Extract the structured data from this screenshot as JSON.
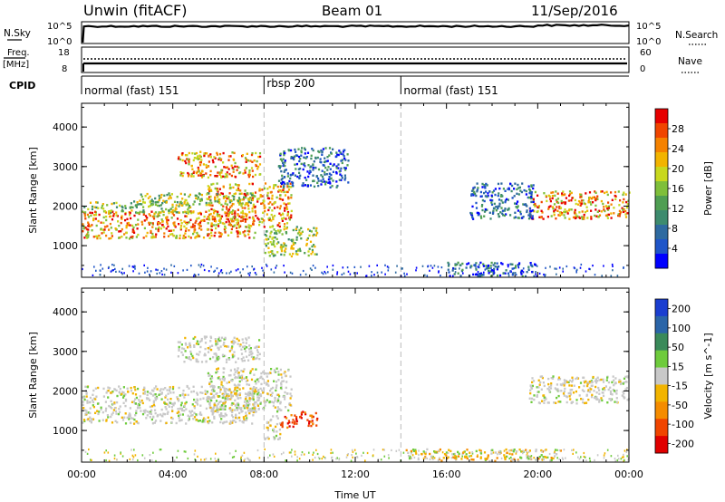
{
  "header": {
    "title": "Unwin (fitACF)",
    "beam": "Beam 01",
    "date": "11/Sep/2016"
  },
  "strips": {
    "nsky_label": "N.Sky",
    "nsky_ticks": [
      "10^5",
      "10^0"
    ],
    "nsearch_label": "N.Search",
    "nsearch_ticks": [
      "10^5",
      "10^0"
    ],
    "freq_label": "Freq.",
    "freq_unit": "[MHz]",
    "freq_ticks": [
      "18",
      "8"
    ],
    "nave_label": "Nave",
    "nave_ticks": [
      "60",
      "0"
    ],
    "cpid_label": "CPID",
    "cpid_segments": [
      {
        "label": "normal (fast) 151",
        "start_hour": 0,
        "end_hour": 8
      },
      {
        "label": "rbsp 200",
        "start_hour": 8,
        "end_hour": 14
      },
      {
        "label": "normal (fast) 151",
        "start_hour": 14,
        "end_hour": 24
      }
    ]
  },
  "chart_data": [
    {
      "type": "heatmap",
      "panel": "power",
      "ylabel": "Slant Range [km]",
      "xlabel": "Time UT",
      "ylim": [
        200,
        4600
      ],
      "xlim": [
        0,
        24
      ],
      "yticks": [
        "1000",
        "2000",
        "3000",
        "4000"
      ],
      "xticks": [
        "00:00",
        "04:00",
        "08:00",
        "12:00",
        "16:00",
        "20:00",
        "00:00"
      ],
      "colorbar": {
        "label": "Power [dB]",
        "ticks": [
          "4",
          "8",
          "12",
          "16",
          "20",
          "24",
          "28"
        ],
        "colors": [
          "#0000ff",
          "#1f55c8",
          "#2e6aa0",
          "#3d8b6e",
          "#4f9e52",
          "#7fbf3a",
          "#c8d81e",
          "#f2b400",
          "#f58200",
          "#f04500",
          "#e60000"
        ]
      },
      "echo_regions": [
        {
          "t_start": 0.0,
          "t_end": 7.6,
          "r_low": 1200,
          "r_high": 1900,
          "level": "high"
        },
        {
          "t_start": 5.5,
          "t_end": 9.2,
          "r_low": 1500,
          "r_high": 2600,
          "level": "high"
        },
        {
          "t_start": 0.0,
          "t_end": 4.8,
          "r_low": 1850,
          "r_high": 2150,
          "level": "medium"
        },
        {
          "t_start": 2.5,
          "t_end": 7.6,
          "r_low": 2050,
          "r_high": 2350,
          "level": "medium"
        },
        {
          "t_start": 4.2,
          "t_end": 7.8,
          "r_low": 2750,
          "r_high": 3400,
          "level": "high"
        },
        {
          "t_start": 8.0,
          "t_end": 10.3,
          "r_low": 750,
          "r_high": 1500,
          "level": "medium"
        },
        {
          "t_start": 8.6,
          "t_end": 11.7,
          "r_low": 2500,
          "r_high": 3500,
          "level": "low"
        },
        {
          "t_start": 19.6,
          "t_end": 24.0,
          "r_low": 1700,
          "r_high": 2400,
          "level": "high"
        },
        {
          "t_start": 17.0,
          "t_end": 19.8,
          "r_low": 1700,
          "r_high": 2600,
          "level": "low"
        },
        {
          "t_start": 16.0,
          "t_end": 20.0,
          "r_low": 250,
          "r_high": 600,
          "level": "low"
        }
      ]
    },
    {
      "type": "heatmap",
      "panel": "velocity",
      "ylabel": "Slant Range [km]",
      "xlabel": "Time UT",
      "ylim": [
        200,
        4600
      ],
      "xlim": [
        0,
        24
      ],
      "yticks": [
        "1000",
        "2000",
        "3000",
        "4000"
      ],
      "xticks": [
        "00:00",
        "04:00",
        "08:00",
        "12:00",
        "16:00",
        "20:00",
        "00:00"
      ],
      "colorbar": {
        "label": "Velocity [m s^-1]",
        "ticks": [
          "200",
          "100",
          "50",
          "15",
          "-15",
          "-50",
          "-100",
          "-200"
        ],
        "colors": [
          "#1a3ed0",
          "#2a65a8",
          "#3a8a5a",
          "#6ecb3c",
          "#c8c8c8",
          "#f2b400",
          "#f58c00",
          "#f04500",
          "#e00000"
        ]
      },
      "echo_regions": [
        {
          "t_start": 0.0,
          "t_end": 7.6,
          "r_low": 1200,
          "r_high": 2150,
          "level": "zero"
        },
        {
          "t_start": 5.5,
          "t_end": 9.2,
          "r_low": 1500,
          "r_high": 2600,
          "level": "zero"
        },
        {
          "t_start": 4.2,
          "t_end": 7.8,
          "r_low": 2750,
          "r_high": 3400,
          "level": "zero"
        },
        {
          "t_start": 8.0,
          "t_end": 8.7,
          "r_low": 800,
          "r_high": 1400,
          "level": "zero"
        },
        {
          "t_start": 8.7,
          "t_end": 10.3,
          "r_low": 1100,
          "r_high": 1500,
          "level": "negative"
        },
        {
          "t_start": 19.6,
          "t_end": 24.0,
          "r_low": 1700,
          "r_high": 2400,
          "level": "zero"
        },
        {
          "t_start": 14.2,
          "t_end": 21.0,
          "r_low": 250,
          "r_high": 550,
          "level": "negative_small"
        }
      ]
    }
  ]
}
